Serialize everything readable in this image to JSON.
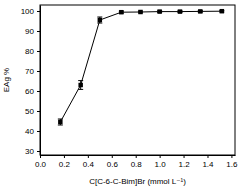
{
  "chart_data": {
    "type": "line",
    "x_label": "C[C-6-C-Bim]Br (mmol L⁻¹)",
    "y_label": "EAg %",
    "x": [
      0.17,
      0.34,
      0.5,
      0.68,
      0.84,
      1.0,
      1.17,
      1.34,
      1.52
    ],
    "values": [
      44.5,
      63,
      95.5,
      99.4,
      99.5,
      99.7,
      99.7,
      99.8,
      99.9
    ],
    "errors": [
      1.5,
      2.2,
      1.5,
      0.5,
      0.4,
      0.4,
      0.4,
      0.4,
      0.4
    ],
    "color": "#000000",
    "marker": "square",
    "line_style": "solid",
    "xlim": [
      0,
      1.63
    ],
    "xticks": [
      {
        "value": 0,
        "label": "0.0"
      },
      {
        "value": 0.2,
        "label": "0.2"
      },
      {
        "value": 0.4,
        "label": "0.4"
      },
      {
        "value": 0.6,
        "label": "0.6"
      },
      {
        "value": 0.8,
        "label": "0.8"
      },
      {
        "value": 1.0,
        "label": "1.0"
      },
      {
        "value": 1.2,
        "label": "1.2"
      },
      {
        "value": 1.4,
        "label": "1.4"
      },
      {
        "value": 1.6,
        "label": "1.6"
      }
    ],
    "ylim": [
      28,
      103
    ],
    "yticks": [
      30,
      40,
      50,
      60,
      70,
      80,
      90,
      100
    ],
    "grid": false
  }
}
